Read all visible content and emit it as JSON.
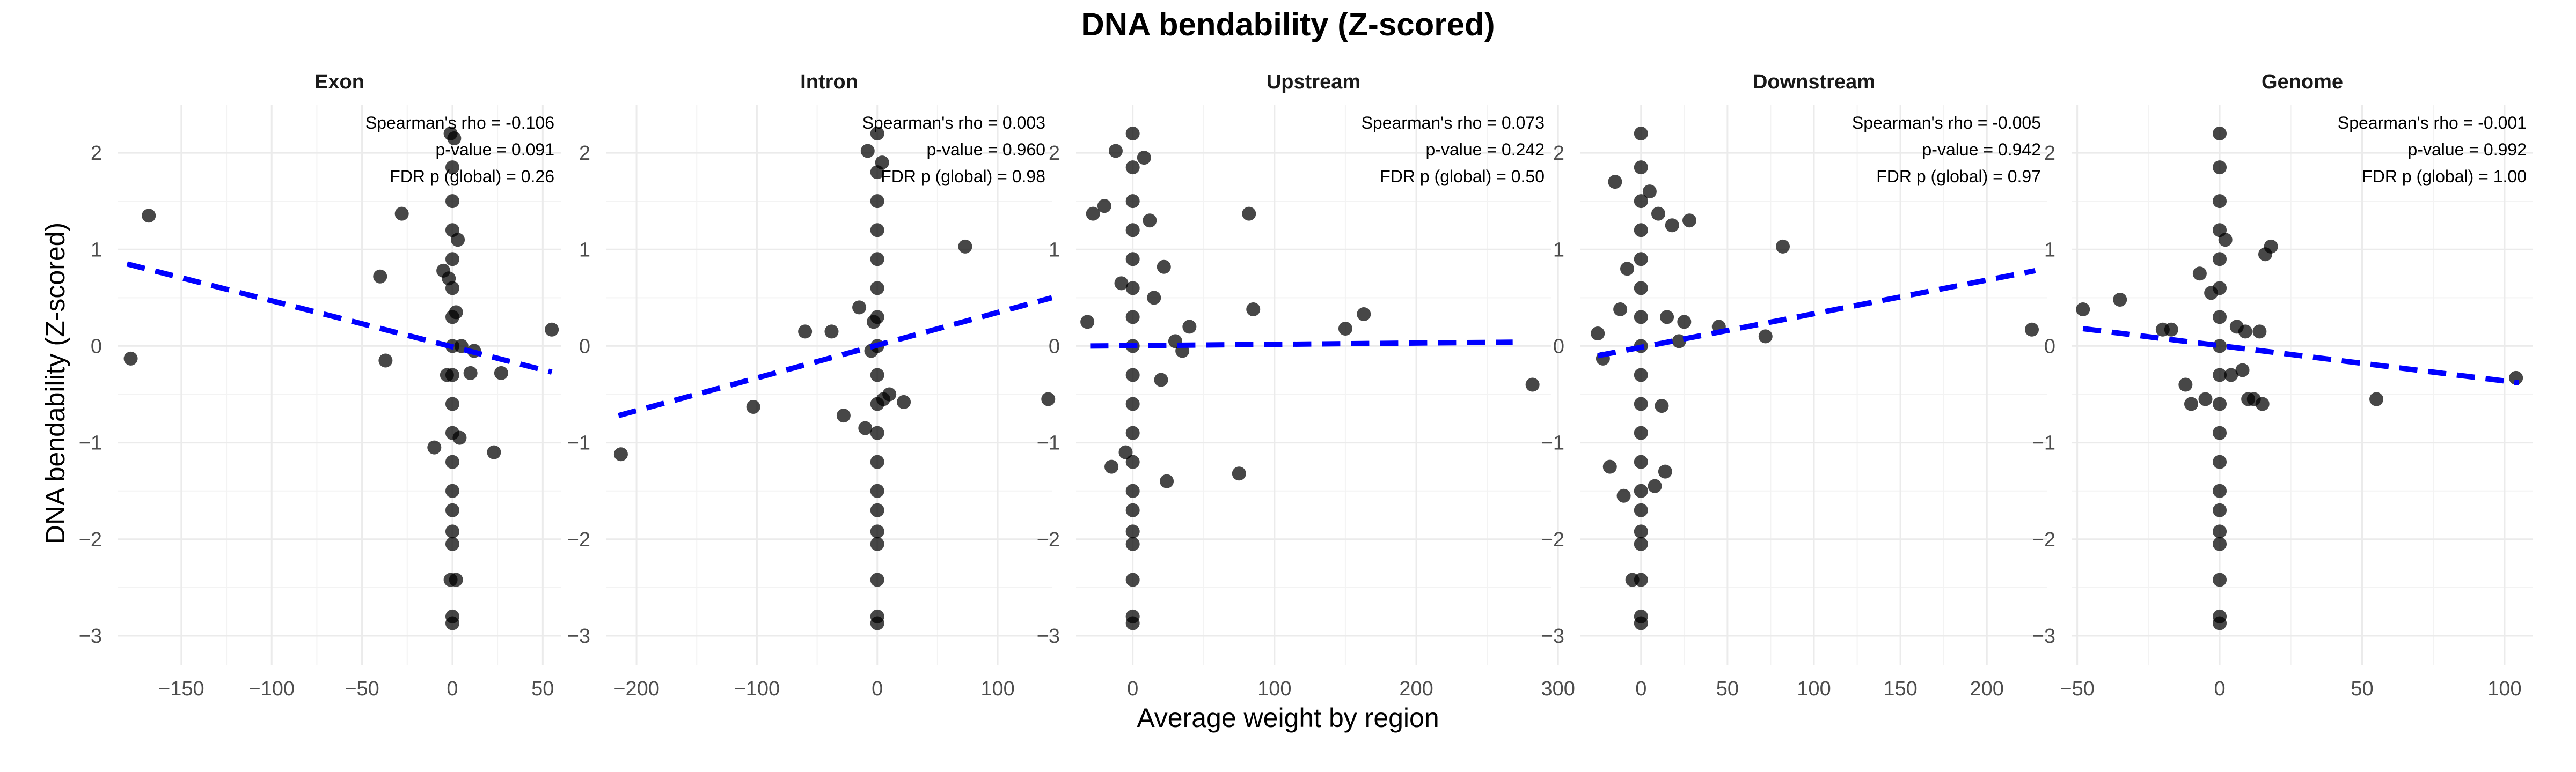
{
  "chart_data": {
    "type": "scatter",
    "title": "DNA bendability (Z-scored)",
    "xlabel": "Average weight by region",
    "ylabel": "DNA bendability (Z-scored)",
    "ylim": [
      -3.3,
      2.5
    ],
    "y_ticks": [
      -3,
      -2,
      -1,
      0,
      1,
      2
    ],
    "grid": true,
    "regression_line_color": "#0000ff",
    "point_color": "#000000",
    "panels": [
      {
        "label": "Exon",
        "xlim": [
          -185,
          60
        ],
        "x_ticks": [
          -150,
          -100,
          -50,
          0,
          50
        ],
        "stats": [
          "Spearman's rho = -0.106",
          "p-value = 0.091",
          "FDR p (global) = 0.26"
        ],
        "fit": {
          "x": [
            -180,
            55
          ],
          "y": [
            0.85,
            -0.27
          ]
        },
        "points": [
          [
            -178,
            -0.13
          ],
          [
            -168,
            1.35
          ],
          [
            -40,
            0.72
          ],
          [
            -37,
            -0.15
          ],
          [
            -28,
            1.37
          ],
          [
            -10,
            -1.05
          ],
          [
            -5,
            0.78
          ],
          [
            -3,
            -0.3
          ],
          [
            -2,
            0.7
          ],
          [
            2,
            0.35
          ],
          [
            3,
            1.1
          ],
          [
            4,
            -0.95
          ],
          [
            5,
            0.0
          ],
          [
            10,
            -0.28
          ],
          [
            12,
            -0.05
          ],
          [
            23,
            -1.1
          ],
          [
            27,
            -0.28
          ],
          [
            55,
            0.17
          ],
          [
            -1,
            2.2
          ],
          [
            1,
            2.15
          ],
          [
            0,
            1.85
          ],
          [
            0,
            1.5
          ],
          [
            0,
            1.2
          ],
          [
            0,
            0.9
          ],
          [
            0,
            0.6
          ],
          [
            0,
            0.3
          ],
          [
            0,
            0.0
          ],
          [
            0,
            -0.3
          ],
          [
            0,
            -0.6
          ],
          [
            0,
            -0.9
          ],
          [
            0,
            -1.2
          ],
          [
            0,
            -1.5
          ],
          [
            0,
            -1.7
          ],
          [
            0,
            -1.92
          ],
          [
            0,
            -2.05
          ],
          [
            -1,
            -2.42
          ],
          [
            2,
            -2.42
          ],
          [
            0,
            -2.8
          ],
          [
            0,
            -2.87
          ]
        ]
      },
      {
        "label": "Intron",
        "xlim": [
          -225,
          145
        ],
        "x_ticks": [
          -200,
          -100,
          0,
          100
        ],
        "stats": [
          "Spearman's rho = 0.003",
          "p-value = 0.960",
          "FDR p (global) = 0.98"
        ],
        "fit": {
          "x": [
            -215,
            145
          ],
          "y": [
            -0.72,
            0.5
          ]
        },
        "points": [
          [
            -213,
            -1.12
          ],
          [
            -103,
            -0.63
          ],
          [
            -60,
            0.15
          ],
          [
            -38,
            0.15
          ],
          [
            -28,
            -0.72
          ],
          [
            -15,
            0.4
          ],
          [
            -10,
            -0.85
          ],
          [
            -8,
            2.02
          ],
          [
            -5,
            -0.05
          ],
          [
            -3,
            0.25
          ],
          [
            4,
            1.9
          ],
          [
            5,
            -0.55
          ],
          [
            10,
            -0.5
          ],
          [
            22,
            -0.58
          ],
          [
            73,
            1.03
          ],
          [
            142,
            -0.55
          ],
          [
            0,
            2.2
          ],
          [
            0,
            1.8
          ],
          [
            0,
            1.5
          ],
          [
            0,
            1.2
          ],
          [
            0,
            0.9
          ],
          [
            0,
            0.6
          ],
          [
            0,
            0.3
          ],
          [
            0,
            0.0
          ],
          [
            0,
            -0.3
          ],
          [
            0,
            -0.6
          ],
          [
            0,
            -0.9
          ],
          [
            0,
            -1.2
          ],
          [
            0,
            -1.5
          ],
          [
            0,
            -1.7
          ],
          [
            0,
            -1.92
          ],
          [
            0,
            -2.05
          ],
          [
            0,
            -2.42
          ],
          [
            0,
            -2.8
          ],
          [
            0,
            -2.87
          ]
        ]
      },
      {
        "label": "Upstream",
        "xlim": [
          -40,
          295
        ],
        "x_ticks": [
          0,
          100,
          200,
          300
        ],
        "stats": [
          "Spearman's rho = 0.073",
          "p-value = 0.242",
          "FDR p (global) = 0.50"
        ],
        "fit": {
          "x": [
            -30,
            268
          ],
          "y": [
            0.0,
            0.04
          ]
        },
        "points": [
          [
            -32,
            0.25
          ],
          [
            -28,
            1.37
          ],
          [
            -20,
            1.45
          ],
          [
            -15,
            -1.25
          ],
          [
            -12,
            2.02
          ],
          [
            -8,
            0.65
          ],
          [
            -5,
            -1.1
          ],
          [
            8,
            1.95
          ],
          [
            12,
            1.3
          ],
          [
            15,
            0.5
          ],
          [
            20,
            -0.35
          ],
          [
            22,
            0.82
          ],
          [
            24,
            -1.4
          ],
          [
            30,
            0.05
          ],
          [
            35,
            -0.05
          ],
          [
            40,
            0.2
          ],
          [
            75,
            -1.32
          ],
          [
            82,
            1.37
          ],
          [
            85,
            0.38
          ],
          [
            150,
            0.18
          ],
          [
            163,
            0.33
          ],
          [
            282,
            -0.4
          ],
          [
            0,
            2.2
          ],
          [
            0,
            1.85
          ],
          [
            0,
            1.5
          ],
          [
            0,
            1.2
          ],
          [
            0,
            0.9
          ],
          [
            0,
            0.6
          ],
          [
            0,
            0.3
          ],
          [
            0,
            0.0
          ],
          [
            0,
            -0.3
          ],
          [
            0,
            -0.6
          ],
          [
            0,
            -0.9
          ],
          [
            0,
            -1.2
          ],
          [
            0,
            -1.5
          ],
          [
            0,
            -1.7
          ],
          [
            0,
            -1.92
          ],
          [
            0,
            -2.05
          ],
          [
            0,
            -2.42
          ],
          [
            0,
            -2.8
          ],
          [
            0,
            -2.87
          ]
        ]
      },
      {
        "label": "Downstream",
        "xlim": [
          -35,
          235
        ],
        "x_ticks": [
          0,
          50,
          100,
          150,
          200
        ],
        "stats": [
          "Spearman's rho = -0.005",
          "p-value = 0.942",
          "FDR p (global) = 0.97"
        ],
        "fit": {
          "x": [
            -25,
            228
          ],
          "y": [
            -0.1,
            0.78
          ]
        },
        "points": [
          [
            -25,
            0.13
          ],
          [
            -22,
            -0.13
          ],
          [
            -18,
            -1.25
          ],
          [
            -15,
            1.7
          ],
          [
            -12,
            0.38
          ],
          [
            -10,
            -1.55
          ],
          [
            -8,
            0.8
          ],
          [
            -5,
            -2.42
          ],
          [
            5,
            1.6
          ],
          [
            8,
            -1.45
          ],
          [
            10,
            1.37
          ],
          [
            12,
            -0.62
          ],
          [
            14,
            -1.3
          ],
          [
            15,
            0.3
          ],
          [
            18,
            1.25
          ],
          [
            22,
            0.05
          ],
          [
            25,
            0.25
          ],
          [
            28,
            1.3
          ],
          [
            45,
            0.2
          ],
          [
            72,
            0.1
          ],
          [
            82,
            1.03
          ],
          [
            226,
            0.17
          ],
          [
            0,
            2.2
          ],
          [
            0,
            1.85
          ],
          [
            0,
            1.5
          ],
          [
            0,
            1.2
          ],
          [
            0,
            0.9
          ],
          [
            0,
            0.6
          ],
          [
            0,
            0.3
          ],
          [
            0,
            0.0
          ],
          [
            0,
            -0.3
          ],
          [
            0,
            -0.6
          ],
          [
            0,
            -0.9
          ],
          [
            0,
            -1.2
          ],
          [
            0,
            -1.5
          ],
          [
            0,
            -1.7
          ],
          [
            0,
            -1.92
          ],
          [
            0,
            -2.05
          ],
          [
            0,
            -2.42
          ],
          [
            0,
            -2.8
          ],
          [
            0,
            -2.87
          ]
        ]
      },
      {
        "label": "Genome",
        "xlim": [
          -52,
          110
        ],
        "x_ticks": [
          -50,
          0,
          50,
          100
        ],
        "stats": [
          "Spearman's rho = -0.001",
          "p-value = 0.992",
          "FDR p (global) = 1.00"
        ],
        "fit": {
          "x": [
            -48,
            105
          ],
          "y": [
            0.18,
            -0.38
          ]
        },
        "points": [
          [
            -48,
            0.38
          ],
          [
            -35,
            0.48
          ],
          [
            -20,
            0.17
          ],
          [
            -17,
            0.17
          ],
          [
            -12,
            -0.4
          ],
          [
            -10,
            -0.6
          ],
          [
            -7,
            0.75
          ],
          [
            -5,
            -0.55
          ],
          [
            -3,
            0.55
          ],
          [
            2,
            1.1
          ],
          [
            4,
            -0.3
          ],
          [
            6,
            0.2
          ],
          [
            8,
            -0.25
          ],
          [
            9,
            0.15
          ],
          [
            10,
            -0.55
          ],
          [
            12,
            -0.55
          ],
          [
            14,
            0.15
          ],
          [
            15,
            -0.6
          ],
          [
            16,
            0.95
          ],
          [
            18,
            1.03
          ],
          [
            55,
            -0.55
          ],
          [
            104,
            -0.33
          ],
          [
            0,
            2.2
          ],
          [
            0,
            1.85
          ],
          [
            0,
            1.5
          ],
          [
            0,
            1.2
          ],
          [
            0,
            0.9
          ],
          [
            0,
            0.6
          ],
          [
            0,
            0.3
          ],
          [
            0,
            0.0
          ],
          [
            0,
            -0.3
          ],
          [
            0,
            -0.6
          ],
          [
            0,
            -0.9
          ],
          [
            0,
            -1.2
          ],
          [
            0,
            -1.5
          ],
          [
            0,
            -1.7
          ],
          [
            0,
            -1.92
          ],
          [
            0,
            -2.05
          ],
          [
            0,
            -2.42
          ],
          [
            0,
            -2.8
          ],
          [
            0,
            -2.87
          ]
        ]
      }
    ]
  }
}
